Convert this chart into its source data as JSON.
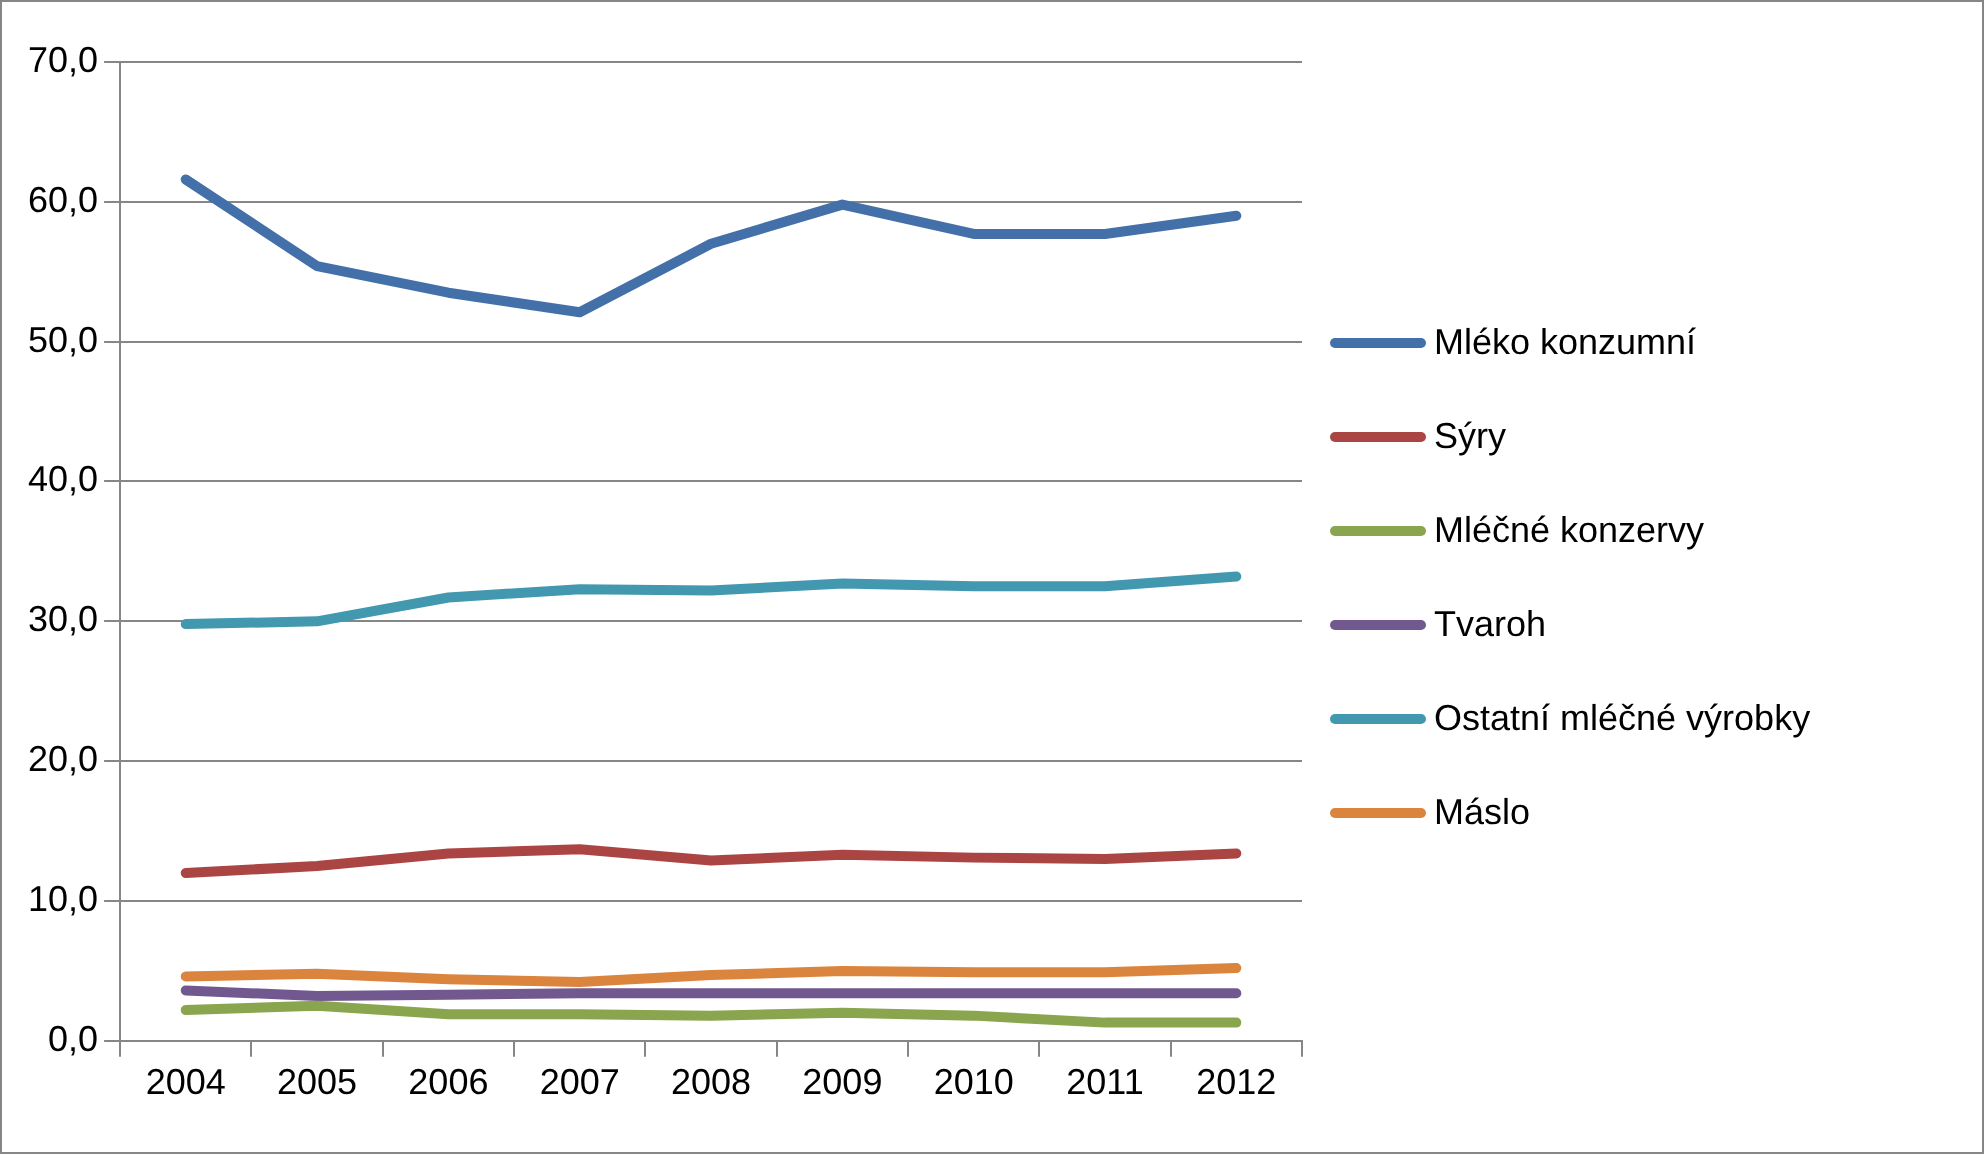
{
  "chart_data": {
    "type": "line",
    "categories": [
      "2004",
      "2005",
      "2006",
      "2007",
      "2008",
      "2009",
      "2010",
      "2011",
      "2012"
    ],
    "series": [
      {
        "name": "Mléko konzumní",
        "color": "#4470aa",
        "values": [
          61.6,
          55.4,
          53.5,
          52.1,
          57.0,
          59.8,
          57.7,
          57.7,
          59.0
        ]
      },
      {
        "name": "Sýry",
        "color": "#aa4544",
        "values": [
          12.0,
          12.5,
          13.4,
          13.7,
          12.9,
          13.3,
          13.1,
          13.0,
          13.4
        ]
      },
      {
        "name": "Mléčné konzervy",
        "color": "#89a54e",
        "values": [
          2.2,
          2.5,
          1.9,
          1.9,
          1.8,
          2.0,
          1.8,
          1.3,
          1.3
        ]
      },
      {
        "name": "Tvaroh",
        "color": "#71588f",
        "values": [
          3.6,
          3.2,
          3.3,
          3.4,
          3.4,
          3.4,
          3.4,
          3.4,
          3.4
        ]
      },
      {
        "name": "Ostatní mléčné výrobky",
        "color": "#4198af",
        "values": [
          29.8,
          30.0,
          31.7,
          32.3,
          32.2,
          32.7,
          32.5,
          32.5,
          33.2
        ]
      },
      {
        "name": "Máslo",
        "color": "#db843d",
        "values": [
          4.6,
          4.8,
          4.4,
          4.2,
          4.7,
          5.0,
          4.9,
          4.9,
          5.2
        ]
      }
    ],
    "ylim": [
      0,
      70
    ],
    "yticks": [
      {
        "value": 0,
        "label": "0,0"
      },
      {
        "value": 10,
        "label": "10,0"
      },
      {
        "value": 20,
        "label": "20,0"
      },
      {
        "value": 30,
        "label": "30,0"
      },
      {
        "value": 40,
        "label": "40,0"
      },
      {
        "value": 50,
        "label": "50,0"
      },
      {
        "value": 60,
        "label": "60,0"
      },
      {
        "value": 70,
        "label": "70,0"
      }
    ],
    "grid": "y",
    "legend": "right",
    "marker": "none",
    "line_style": "solid"
  }
}
